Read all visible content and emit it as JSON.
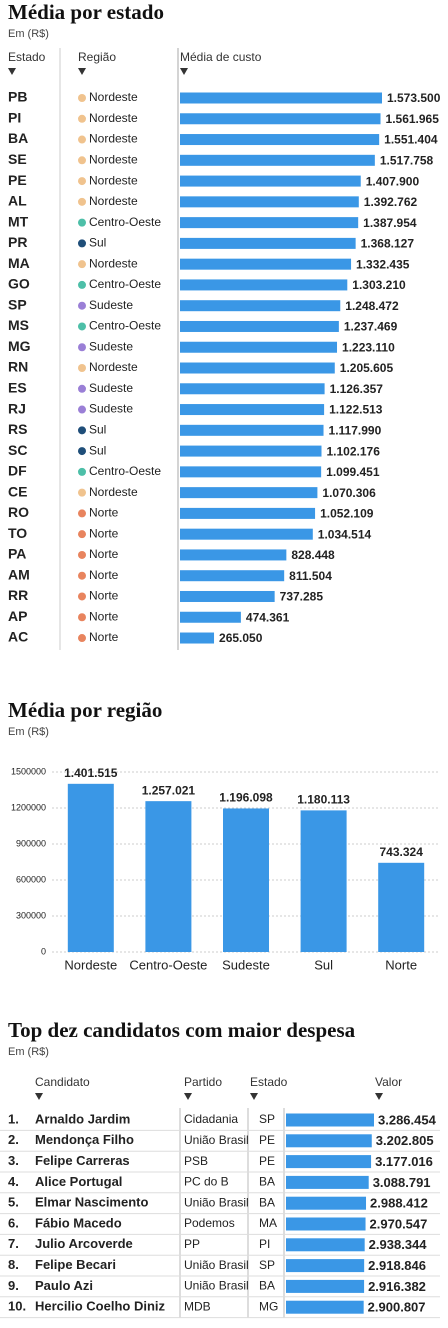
{
  "chart_data": [
    {
      "type": "hbar",
      "title": "Média por estado",
      "subtitle": "Em (R$)",
      "columns": [
        "Estado",
        "Região",
        "Média de custo"
      ],
      "categories": [
        "PB",
        "PI",
        "BA",
        "SE",
        "PE",
        "AL",
        "MT",
        "PR",
        "MA",
        "GO",
        "SP",
        "MS",
        "MG",
        "RN",
        "ES",
        "RJ",
        "RS",
        "SC",
        "DF",
        "CE",
        "RO",
        "TO",
        "PA",
        "AM",
        "RR",
        "AP",
        "AC"
      ],
      "regions": [
        "Nordeste",
        "Nordeste",
        "Nordeste",
        "Nordeste",
        "Nordeste",
        "Nordeste",
        "Centro-Oeste",
        "Sul",
        "Nordeste",
        "Centro-Oeste",
        "Sudeste",
        "Centro-Oeste",
        "Sudeste",
        "Nordeste",
        "Sudeste",
        "Sudeste",
        "Sul",
        "Sul",
        "Centro-Oeste",
        "Nordeste",
        "Norte",
        "Norte",
        "Norte",
        "Norte",
        "Norte",
        "Norte",
        "Norte"
      ],
      "region_colors": {
        "Nordeste": "#f0c38e",
        "Centro-Oeste": "#4dbfa8",
        "Sul": "#1f4e79",
        "Sudeste": "#9a7fd6",
        "Norte": "#e8845e"
      },
      "values": [
        1573500,
        1561965,
        1551404,
        1517758,
        1407900,
        1392762,
        1387954,
        1368127,
        1332435,
        1303210,
        1248472,
        1237469,
        1223110,
        1205605,
        1126357,
        1122513,
        1117990,
        1102176,
        1099451,
        1070306,
        1052109,
        1034514,
        828448,
        811504,
        737285,
        474361,
        265050
      ],
      "value_labels": [
        "1.573.500",
        "1.561.965",
        "1.551.404",
        "1.517.758",
        "1.407.900",
        "1.392.762",
        "1.387.954",
        "1.368.127",
        "1.332.435",
        "1.303.210",
        "1.248.472",
        "1.237.469",
        "1.223.110",
        "1.205.605",
        "1.126.357",
        "1.122.513",
        "1.117.990",
        "1.102.176",
        "1.099.451",
        "1.070.306",
        "1.052.109",
        "1.034.514",
        "828.448",
        "811.504",
        "737.285",
        "474.361",
        "265.050"
      ],
      "color": "#3a97e6"
    },
    {
      "type": "bar",
      "title": "Média por região",
      "subtitle": "Em (R$)",
      "categories": [
        "Nordeste",
        "Centro-Oeste",
        "Sudeste",
        "Sul",
        "Norte"
      ],
      "values": [
        1401515,
        1257021,
        1196098,
        1180113,
        743324
      ],
      "value_labels": [
        "1.401.515",
        "1.257.021",
        "1.196.098",
        "1.180.113",
        "743.324"
      ],
      "color": "#3a97e6",
      "ylim": [
        0,
        1500000
      ],
      "yticks": [
        0,
        300000,
        600000,
        900000,
        1200000,
        1500000
      ],
      "grid": true
    },
    {
      "type": "table",
      "title": "Top dez candidatos com maior despesa",
      "subtitle": "Em (R$)",
      "columns": [
        "Candidato",
        "Partido",
        "Estado",
        "Valor"
      ],
      "ranks": [
        "1.",
        "2.",
        "3.",
        "4.",
        "5.",
        "6.",
        "7.",
        "8.",
        "9.",
        "10."
      ],
      "categories": [
        "Arnaldo Jardim",
        "Mendonça Filho",
        "Felipe Carreras",
        "Alice Portugal",
        "Elmar Nascimento",
        "Fábio Macedo",
        "Julio Arcoverde",
        "Felipe Becari",
        "Paulo Azi",
        "Hercilio Coelho Diniz"
      ],
      "parties": [
        "Cidadania",
        "União Brasil",
        "PSB",
        "PC do B",
        "União Brasil",
        "Podemos",
        "PP",
        "União Brasil",
        "União Brasil",
        "MDB"
      ],
      "states": [
        "SP",
        "PE",
        "PE",
        "BA",
        "BA",
        "MA",
        "PI",
        "SP",
        "BA",
        "MG"
      ],
      "values": [
        3286454,
        3202805,
        3177016,
        3088791,
        2988412,
        2970547,
        2938344,
        2918846,
        2916382,
        2900807
      ],
      "value_labels": [
        "3.286.454",
        "3.202.805",
        "3.177.016",
        "3.088.791",
        "2.988.412",
        "2.970.547",
        "2.938.344",
        "2.918.846",
        "2.916.382",
        "2.900.807"
      ],
      "color": "#3a97e6"
    }
  ]
}
